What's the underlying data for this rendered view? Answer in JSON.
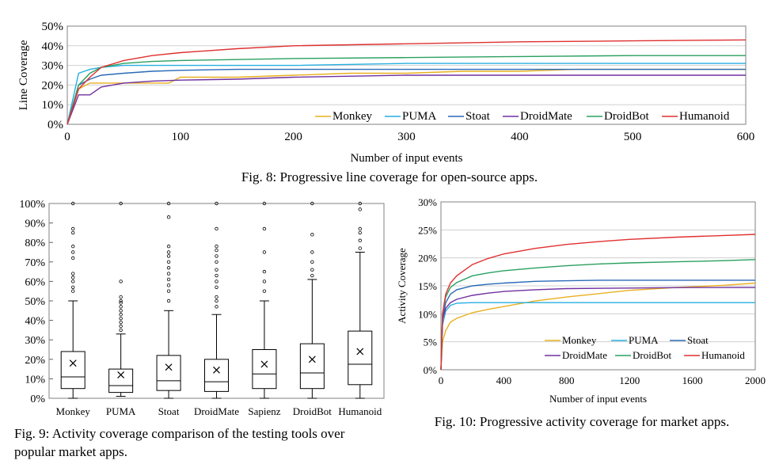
{
  "chart_data": [
    {
      "type": "line",
      "caption": "Fig. 8: Progressive line coverage for open-source apps.",
      "xlabel": "Number of input events",
      "ylabel": "Line Coverage",
      "xlim": [
        0,
        600
      ],
      "ylim": [
        0,
        50
      ],
      "xticks": [
        "0",
        "100",
        "200",
        "300",
        "400",
        "500",
        "600"
      ],
      "yticks": [
        "0%",
        "10%",
        "20%",
        "30%",
        "40%",
        "50%"
      ],
      "grid": "horizontal",
      "legend": "bottom-right",
      "colors": {
        "Monkey": "#e8b020",
        "PUMA": "#27aee0",
        "Stoat": "#2a6ab8",
        "DroidMate": "#7030a0",
        "DroidBot": "#2aa060",
        "Humanoid": "#e03030"
      },
      "series": [
        {
          "name": "Monkey",
          "x": [
            0,
            10,
            20,
            50,
            90,
            100,
            150,
            200,
            250,
            300,
            350,
            400,
            450,
            500,
            600
          ],
          "y": [
            0,
            18,
            21,
            21,
            21,
            24,
            24,
            25,
            26,
            26,
            27,
            27,
            28,
            28,
            28
          ]
        },
        {
          "name": "PUMA",
          "x": [
            0,
            10,
            20,
            30,
            50,
            100,
            200,
            300,
            400,
            500,
            600
          ],
          "y": [
            0,
            26,
            28,
            29,
            30,
            30,
            30,
            31,
            31,
            31,
            31
          ]
        },
        {
          "name": "Stoat",
          "x": [
            0,
            10,
            20,
            30,
            50,
            75,
            100,
            150,
            200,
            300,
            400,
            500,
            600
          ],
          "y": [
            0,
            20,
            23,
            25,
            26,
            27,
            27.5,
            28,
            28,
            28,
            28,
            28,
            28
          ]
        },
        {
          "name": "DroidMate",
          "x": [
            0,
            10,
            20,
            30,
            50,
            75,
            100,
            150,
            200,
            300,
            400,
            500,
            600
          ],
          "y": [
            0,
            15,
            15,
            19,
            21,
            22,
            22.5,
            23,
            24,
            25,
            25,
            25,
            25
          ]
        },
        {
          "name": "DroidBot",
          "x": [
            0,
            10,
            20,
            30,
            50,
            75,
            100,
            150,
            200,
            300,
            400,
            500,
            600
          ],
          "y": [
            0,
            20,
            26,
            29,
            31,
            32,
            32.5,
            33,
            33.5,
            34,
            34.5,
            35,
            35
          ]
        },
        {
          "name": "Humanoid",
          "x": [
            0,
            10,
            20,
            30,
            50,
            75,
            100,
            150,
            200,
            300,
            400,
            500,
            600
          ],
          "y": [
            0,
            18,
            24,
            29,
            32.5,
            35,
            36.5,
            38.5,
            40,
            41,
            42,
            42.5,
            43
          ]
        }
      ]
    },
    {
      "type": "box",
      "caption": "Fig. 9: Activity coverage comparison of the testing tools over popular market apps.",
      "ylim": [
        0,
        100
      ],
      "yticks": [
        "0%",
        "10%",
        "20%",
        "30%",
        "40%",
        "50%",
        "60%",
        "70%",
        "80%",
        "90%",
        "100%"
      ],
      "categories": [
        "Monkey",
        "PUMA",
        "Stoat",
        "DroidMate",
        "Sapienz",
        "DroidBot",
        "Humanoid"
      ],
      "boxes": [
        {
          "min": 0,
          "q1": 5,
          "median": 11,
          "q3": 24,
          "max": 50,
          "mean": 18,
          "outliers": [
            55,
            57,
            60,
            62,
            64,
            72,
            75,
            78,
            85,
            87,
            100
          ]
        },
        {
          "min": 1,
          "q1": 3,
          "median": 6.5,
          "q3": 15,
          "max": 33,
          "mean": 12,
          "outliers": [
            35,
            37,
            39,
            41,
            43,
            45,
            47,
            49,
            50,
            52,
            60,
            100
          ]
        },
        {
          "min": 0,
          "q1": 4,
          "median": 9,
          "q3": 22,
          "max": 45,
          "mean": 16,
          "outliers": [
            50,
            55,
            58,
            61,
            64,
            67,
            70,
            73,
            75,
            78,
            93,
            100
          ]
        },
        {
          "min": 0,
          "q1": 3.5,
          "median": 8.5,
          "q3": 20,
          "max": 43,
          "mean": 14.5,
          "outliers": [
            47,
            50,
            52,
            57,
            60,
            63,
            66,
            70,
            73,
            76,
            78,
            87,
            100
          ]
        },
        {
          "min": 0,
          "q1": 5,
          "median": 12.5,
          "q3": 25,
          "max": 50,
          "mean": 17.5,
          "outliers": [
            55,
            60,
            65,
            75,
            87,
            100
          ]
        },
        {
          "min": 0,
          "q1": 5,
          "median": 13,
          "q3": 28,
          "max": 61,
          "mean": 20,
          "outliers": [
            63,
            66,
            70,
            75,
            84,
            100
          ]
        },
        {
          "min": 0,
          "q1": 7,
          "median": 17.5,
          "q3": 34.5,
          "max": 75,
          "mean": 24,
          "outliers": [
            77,
            81,
            85,
            87,
            97,
            100
          ]
        }
      ]
    },
    {
      "type": "line",
      "caption": "Fig. 10: Progressive activity coverage for market apps.",
      "xlabel": "Number of input events",
      "ylabel": "Activity Coverage",
      "xlim": [
        0,
        2000
      ],
      "ylim": [
        0,
        30
      ],
      "xticks": [
        "0",
        "400",
        "800",
        "1200",
        "1600",
        "2000"
      ],
      "yticks": [
        "0%",
        "5%",
        "10%",
        "15%",
        "20%",
        "25%",
        "30%"
      ],
      "grid": "horizontal",
      "legend": "bottom-right",
      "colors": {
        "Monkey": "#e8b020",
        "PUMA": "#27aee0",
        "Stoat": "#2a6ab8",
        "DroidMate": "#7030a0",
        "DroidBot": "#2aa060",
        "Humanoid": "#e03030"
      },
      "series": [
        {
          "name": "Monkey",
          "x": [
            0,
            10,
            30,
            60,
            100,
            200,
            300,
            400,
            600,
            800,
            1000,
            1200,
            1500,
            1800,
            2000
          ],
          "y": [
            0,
            5,
            7,
            8.5,
            9.2,
            10.2,
            10.8,
            11.3,
            12.3,
            13,
            13.6,
            14.2,
            14.7,
            15.1,
            15.5
          ]
        },
        {
          "name": "PUMA",
          "x": [
            0,
            10,
            30,
            60,
            100,
            200,
            400,
            800,
            1200,
            1600,
            2000
          ],
          "y": [
            0,
            8,
            10.5,
            11.5,
            11.9,
            12,
            12,
            12,
            12,
            12,
            12
          ]
        },
        {
          "name": "Stoat",
          "x": [
            0,
            10,
            30,
            60,
            100,
            200,
            300,
            400,
            600,
            800,
            1000,
            1200,
            1600,
            2000
          ],
          "y": [
            0,
            9,
            12,
            13.5,
            14.3,
            15,
            15.3,
            15.5,
            15.8,
            15.9,
            16,
            16,
            16,
            16
          ]
        },
        {
          "name": "DroidMate",
          "x": [
            0,
            10,
            30,
            60,
            100,
            200,
            300,
            400,
            600,
            800,
            1200,
            1600,
            2000
          ],
          "y": [
            0,
            9,
            11,
            12,
            12.6,
            13.3,
            13.7,
            14,
            14.3,
            14.5,
            14.6,
            14.7,
            14.7
          ]
        },
        {
          "name": "DroidBot",
          "x": [
            0,
            10,
            30,
            60,
            100,
            200,
            300,
            400,
            600,
            800,
            1000,
            1200,
            1500,
            1800,
            2000
          ],
          "y": [
            0,
            10,
            13,
            14.7,
            15.6,
            16.8,
            17.3,
            17.7,
            18.2,
            18.6,
            18.9,
            19.1,
            19.3,
            19.5,
            19.7
          ]
        },
        {
          "name": "Humanoid",
          "x": [
            0,
            10,
            30,
            60,
            100,
            200,
            300,
            400,
            600,
            800,
            1000,
            1200,
            1500,
            1800,
            2000
          ],
          "y": [
            0,
            10,
            13.5,
            15.5,
            16.8,
            18.8,
            19.9,
            20.7,
            21.7,
            22.4,
            22.9,
            23.3,
            23.7,
            24,
            24.2
          ]
        }
      ]
    }
  ]
}
